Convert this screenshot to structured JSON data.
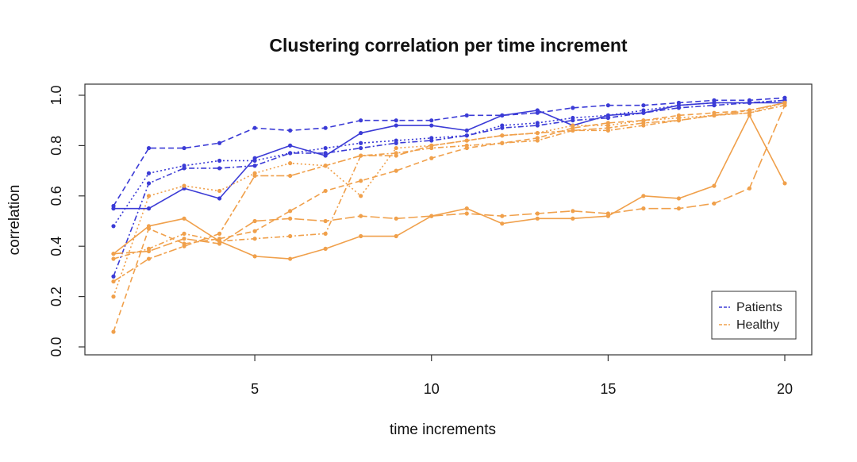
{
  "chart_data": {
    "type": "line",
    "title": "Clustering correlation per time increment",
    "xlabel": "time increments",
    "ylabel": "correlation",
    "xlim": [
      1,
      20
    ],
    "ylim": [
      0,
      1
    ],
    "xticks": [
      5,
      10,
      15,
      20
    ],
    "yticks": [
      0.0,
      0.2,
      0.4,
      0.6,
      0.8,
      1.0
    ],
    "ytick_labels": [
      "0.0",
      "0.2",
      "0.4",
      "0.6",
      "0.8",
      "1.0"
    ],
    "grid": false,
    "legend": {
      "position": "bottom-right",
      "entries": [
        {
          "label": "Patients",
          "color": "#3b3bd6"
        },
        {
          "label": "Healthy",
          "color": "#f0a04b"
        }
      ]
    },
    "x": [
      1,
      2,
      3,
      4,
      5,
      6,
      7,
      8,
      9,
      10,
      11,
      12,
      13,
      14,
      15,
      16,
      17,
      18,
      19,
      20
    ],
    "series": [
      {
        "group": "Patients",
        "color": "#3b3bd6",
        "dash": "solid",
        "values": [
          0.55,
          0.55,
          0.63,
          0.59,
          0.75,
          0.8,
          0.76,
          0.85,
          0.88,
          0.88,
          0.86,
          0.92,
          0.94,
          0.88,
          0.92,
          0.93,
          0.96,
          0.97,
          0.97,
          0.97
        ]
      },
      {
        "group": "Patients",
        "color": "#3b3bd6",
        "dash": "dashed",
        "values": [
          0.56,
          0.79,
          0.79,
          0.81,
          0.87,
          0.86,
          0.87,
          0.9,
          0.9,
          0.9,
          0.92,
          0.92,
          0.93,
          0.95,
          0.96,
          0.96,
          0.97,
          0.98,
          0.98,
          0.99
        ]
      },
      {
        "group": "Patients",
        "color": "#3b3bd6",
        "dash": "dotted",
        "values": [
          0.48,
          0.69,
          0.72,
          0.74,
          0.74,
          0.77,
          0.79,
          0.81,
          0.82,
          0.83,
          0.84,
          0.88,
          0.89,
          0.91,
          0.92,
          0.94,
          0.96,
          0.97,
          0.97,
          0.98
        ]
      },
      {
        "group": "Patients",
        "color": "#3b3bd6",
        "dash": "dashdot",
        "values": [
          0.28,
          0.65,
          0.71,
          0.71,
          0.72,
          0.77,
          0.77,
          0.79,
          0.81,
          0.82,
          0.84,
          0.87,
          0.88,
          0.9,
          0.91,
          0.93,
          0.95,
          0.96,
          0.97,
          0.98
        ]
      },
      {
        "group": "Healthy",
        "color": "#f0a04b",
        "dash": "solid",
        "values": [
          0.37,
          0.48,
          0.51,
          0.42,
          0.36,
          0.35,
          0.39,
          0.44,
          0.44,
          0.52,
          0.55,
          0.49,
          0.51,
          0.51,
          0.52,
          0.6,
          0.59,
          0.64,
          0.92,
          0.65
        ]
      },
      {
        "group": "Healthy",
        "color": "#f0a04b",
        "dash": "dashed",
        "values": [
          0.06,
          0.47,
          0.41,
          0.43,
          0.46,
          0.54,
          0.62,
          0.66,
          0.7,
          0.75,
          0.79,
          0.81,
          0.83,
          0.87,
          0.89,
          0.9,
          0.92,
          0.93,
          0.94,
          0.97
        ]
      },
      {
        "group": "Healthy",
        "color": "#f0a04b",
        "dash": "dotted",
        "values": [
          0.2,
          0.6,
          0.64,
          0.62,
          0.69,
          0.73,
          0.72,
          0.6,
          0.79,
          0.8,
          0.82,
          0.84,
          0.85,
          0.88,
          0.88,
          0.9,
          0.91,
          0.92,
          0.93,
          0.97
        ]
      },
      {
        "group": "Healthy",
        "color": "#f0a04b",
        "dash": "dashdot",
        "values": [
          0.35,
          0.39,
          0.45,
          0.42,
          0.43,
          0.44,
          0.45,
          0.76,
          0.77,
          0.79,
          0.8,
          0.81,
          0.82,
          0.86,
          0.86,
          0.88,
          0.9,
          0.92,
          0.93,
          0.96
        ]
      },
      {
        "group": "Healthy",
        "color": "#f0a04b",
        "dash": "longdash",
        "values": [
          0.37,
          0.38,
          0.43,
          0.41,
          0.5,
          0.51,
          0.5,
          0.52,
          0.51,
          0.52,
          0.53,
          0.52,
          0.53,
          0.54,
          0.53,
          0.55,
          0.55,
          0.57,
          0.63,
          0.96
        ]
      },
      {
        "group": "Healthy",
        "color": "#f0a04b",
        "dash": "twodash",
        "values": [
          0.26,
          0.35,
          0.4,
          0.45,
          0.68,
          0.68,
          0.72,
          0.76,
          0.76,
          0.8,
          0.82,
          0.84,
          0.85,
          0.86,
          0.87,
          0.89,
          0.9,
          0.92,
          0.94,
          0.97
        ]
      }
    ]
  }
}
